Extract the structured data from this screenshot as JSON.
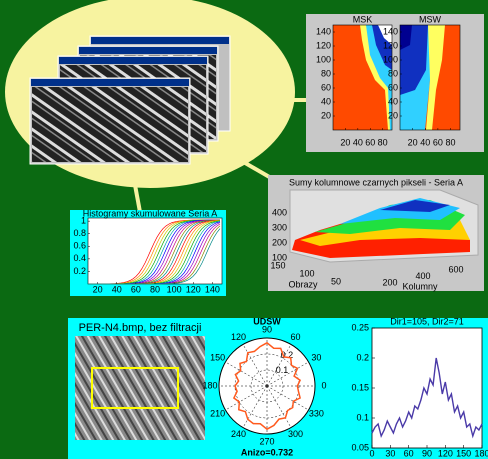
{
  "msk_panel": {
    "titles": [
      "MSK",
      "MSW"
    ],
    "yticks": [
      140,
      120,
      100,
      80,
      60,
      40,
      20
    ],
    "ylim": [
      0,
      150
    ],
    "xticks": [
      20,
      40,
      60,
      80
    ],
    "xlim": [
      0,
      95
    ]
  },
  "surface_panel": {
    "title": "Sumy kolumnowe czarnych pikseli - Seria A",
    "zticks": [
      400,
      300,
      200,
      100
    ],
    "y_label": "Obrazy",
    "yticks": [
      150,
      100,
      50
    ],
    "x_label": "Kolumny",
    "xticks": [
      200,
      400,
      600
    ]
  },
  "histogram_panel": {
    "title": "Histogramy skumulowane Seria A",
    "yticks": [
      0.2,
      0.4,
      0.6,
      0.8,
      1
    ],
    "ylim": [
      0,
      1.05
    ],
    "xticks": [
      20,
      40,
      60,
      80,
      100,
      120,
      140
    ],
    "xlim": [
      10,
      150
    ]
  },
  "image_title": "PER-N4.bmp, bez filtracji",
  "polar": {
    "title": "UDSW",
    "angle_labels": [
      0,
      30,
      60,
      90,
      120,
      150,
      180,
      210,
      240,
      270,
      300,
      330
    ],
    "rticks": [
      0.1,
      0.2
    ],
    "rlim": [
      0,
      0.3
    ],
    "angles": [
      0,
      10,
      20,
      30,
      40,
      50,
      60,
      70,
      80,
      90,
      100,
      110,
      120,
      130,
      140,
      150,
      160,
      170,
      180,
      190,
      200,
      210,
      220,
      230,
      240,
      250,
      260,
      270,
      280,
      290,
      300,
      310,
      320,
      330,
      340,
      350
    ],
    "values": [
      0.19,
      0.21,
      0.18,
      0.22,
      0.2,
      0.23,
      0.21,
      0.25,
      0.24,
      0.27,
      0.25,
      0.23,
      0.24,
      0.2,
      0.22,
      0.19,
      0.21,
      0.18,
      0.2,
      0.19,
      0.22,
      0.2,
      0.23,
      0.21,
      0.24,
      0.25,
      0.24,
      0.27,
      0.25,
      0.22,
      0.23,
      0.2,
      0.21,
      0.19,
      0.22,
      0.2
    ],
    "color": "#ff5a1e",
    "annotation": "Anizo=0.732"
  },
  "line_chart": {
    "type": "line",
    "title": "Dir1=105, Dir2=71",
    "x": [
      0,
      5,
      10,
      15,
      20,
      25,
      30,
      35,
      40,
      45,
      50,
      55,
      60,
      65,
      70,
      75,
      80,
      85,
      90,
      95,
      100,
      105,
      110,
      115,
      120,
      125,
      130,
      135,
      140,
      145,
      150,
      155,
      160,
      165,
      170,
      175,
      180
    ],
    "values": [
      0.075,
      0.085,
      0.09,
      0.07,
      0.08,
      0.095,
      0.085,
      0.075,
      0.09,
      0.1,
      0.085,
      0.095,
      0.11,
      0.1,
      0.12,
      0.115,
      0.13,
      0.15,
      0.14,
      0.165,
      0.155,
      0.2,
      0.175,
      0.14,
      0.16,
      0.13,
      0.14,
      0.11,
      0.12,
      0.1,
      0.11,
      0.085,
      0.09,
      0.07,
      0.085,
      0.08,
      0.09
    ],
    "color": "#4a3aa8",
    "ylim": [
      0.05,
      0.25
    ],
    "yticks": [
      0.25,
      0.2,
      0.15,
      0.1,
      0.05
    ],
    "xlim": [
      0,
      180
    ],
    "xticks": [
      0,
      30,
      60,
      90,
      120,
      150,
      180
    ]
  }
}
